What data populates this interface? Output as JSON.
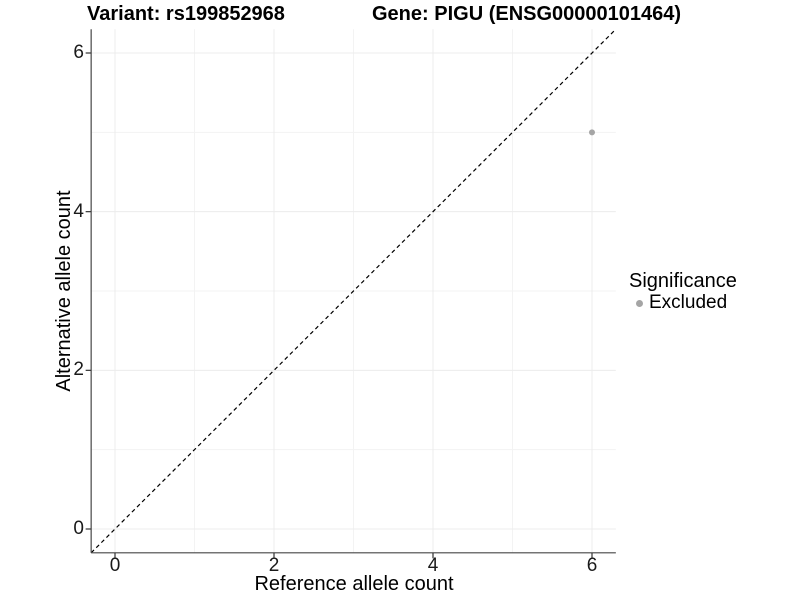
{
  "chart_data": {
    "type": "scatter",
    "title_left": "Variant: rs199852968",
    "title_right": "Gene: PIGU (ENSG00000101464)",
    "xlabel": "Reference allele count",
    "ylabel": "Alternative allele count",
    "xlim": [
      -0.3,
      6.3
    ],
    "ylim": [
      -0.3,
      6.3
    ],
    "x_ticks": [
      0,
      2,
      4,
      6
    ],
    "y_ticks": [
      0,
      2,
      4,
      6
    ],
    "x_minor_ticks": [
      1,
      3,
      5
    ],
    "y_minor_ticks": [
      1,
      3,
      5
    ],
    "x_tick_labels": [
      "0",
      "2",
      "4",
      "6"
    ],
    "y_tick_labels": [
      "0",
      "2",
      "4",
      "6"
    ],
    "grid": true,
    "points": [
      {
        "x": 6,
        "y": 5,
        "series": "Excluded"
      }
    ],
    "reference_line": {
      "type": "identity",
      "slope": 1,
      "intercept": 0,
      "style": "dashed"
    },
    "legend": {
      "title": "Significance",
      "position": "right",
      "entries": [
        {
          "label": "Excluded",
          "color": "#a5a5a5"
        }
      ]
    }
  },
  "colors": {
    "point": "#a5a5a5",
    "legend_dot": "#a5a5a5",
    "grid_major": "#ececec",
    "grid_minor": "#f3f3f3",
    "axis_line": "#474747",
    "tick_mark": "#333333",
    "diagonal_line": "#000000",
    "background": "#ffffff",
    "text": "#000000"
  }
}
